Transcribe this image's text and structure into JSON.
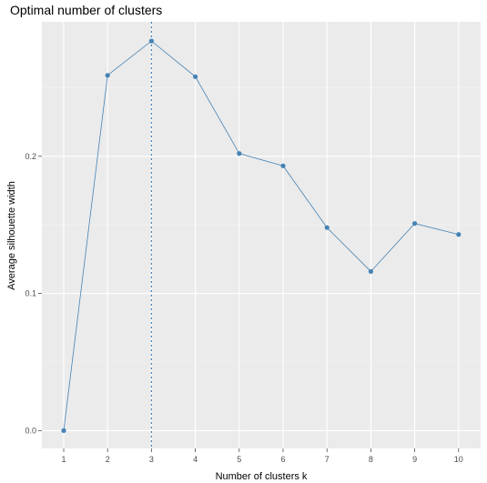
{
  "chart_data": {
    "type": "line",
    "title": "Optimal number of clusters",
    "xlabel": "Number of clusters k",
    "ylabel": "Average silhouette width",
    "categories": [
      "1",
      "2",
      "3",
      "4",
      "5",
      "6",
      "7",
      "8",
      "9",
      "10"
    ],
    "series": [
      {
        "values": [
          0.0,
          0.259,
          0.284,
          0.258,
          0.202,
          0.193,
          0.148,
          0.116,
          0.151,
          0.143
        ]
      }
    ],
    "y_ticks": [
      "0.0",
      "0.1",
      "0.2"
    ],
    "ylim": [
      -0.013,
      0.298
    ],
    "optimal_k": 3,
    "grid": true,
    "legend": "none",
    "colors": {
      "panel": "#ebebeb",
      "grid_major": "#ffffff",
      "grid_minor": "#f4f4f4",
      "series": "#4682b4",
      "marker": "#4682b4",
      "optimal_line": "#4682b4",
      "tick": "#4d4d4d"
    }
  }
}
